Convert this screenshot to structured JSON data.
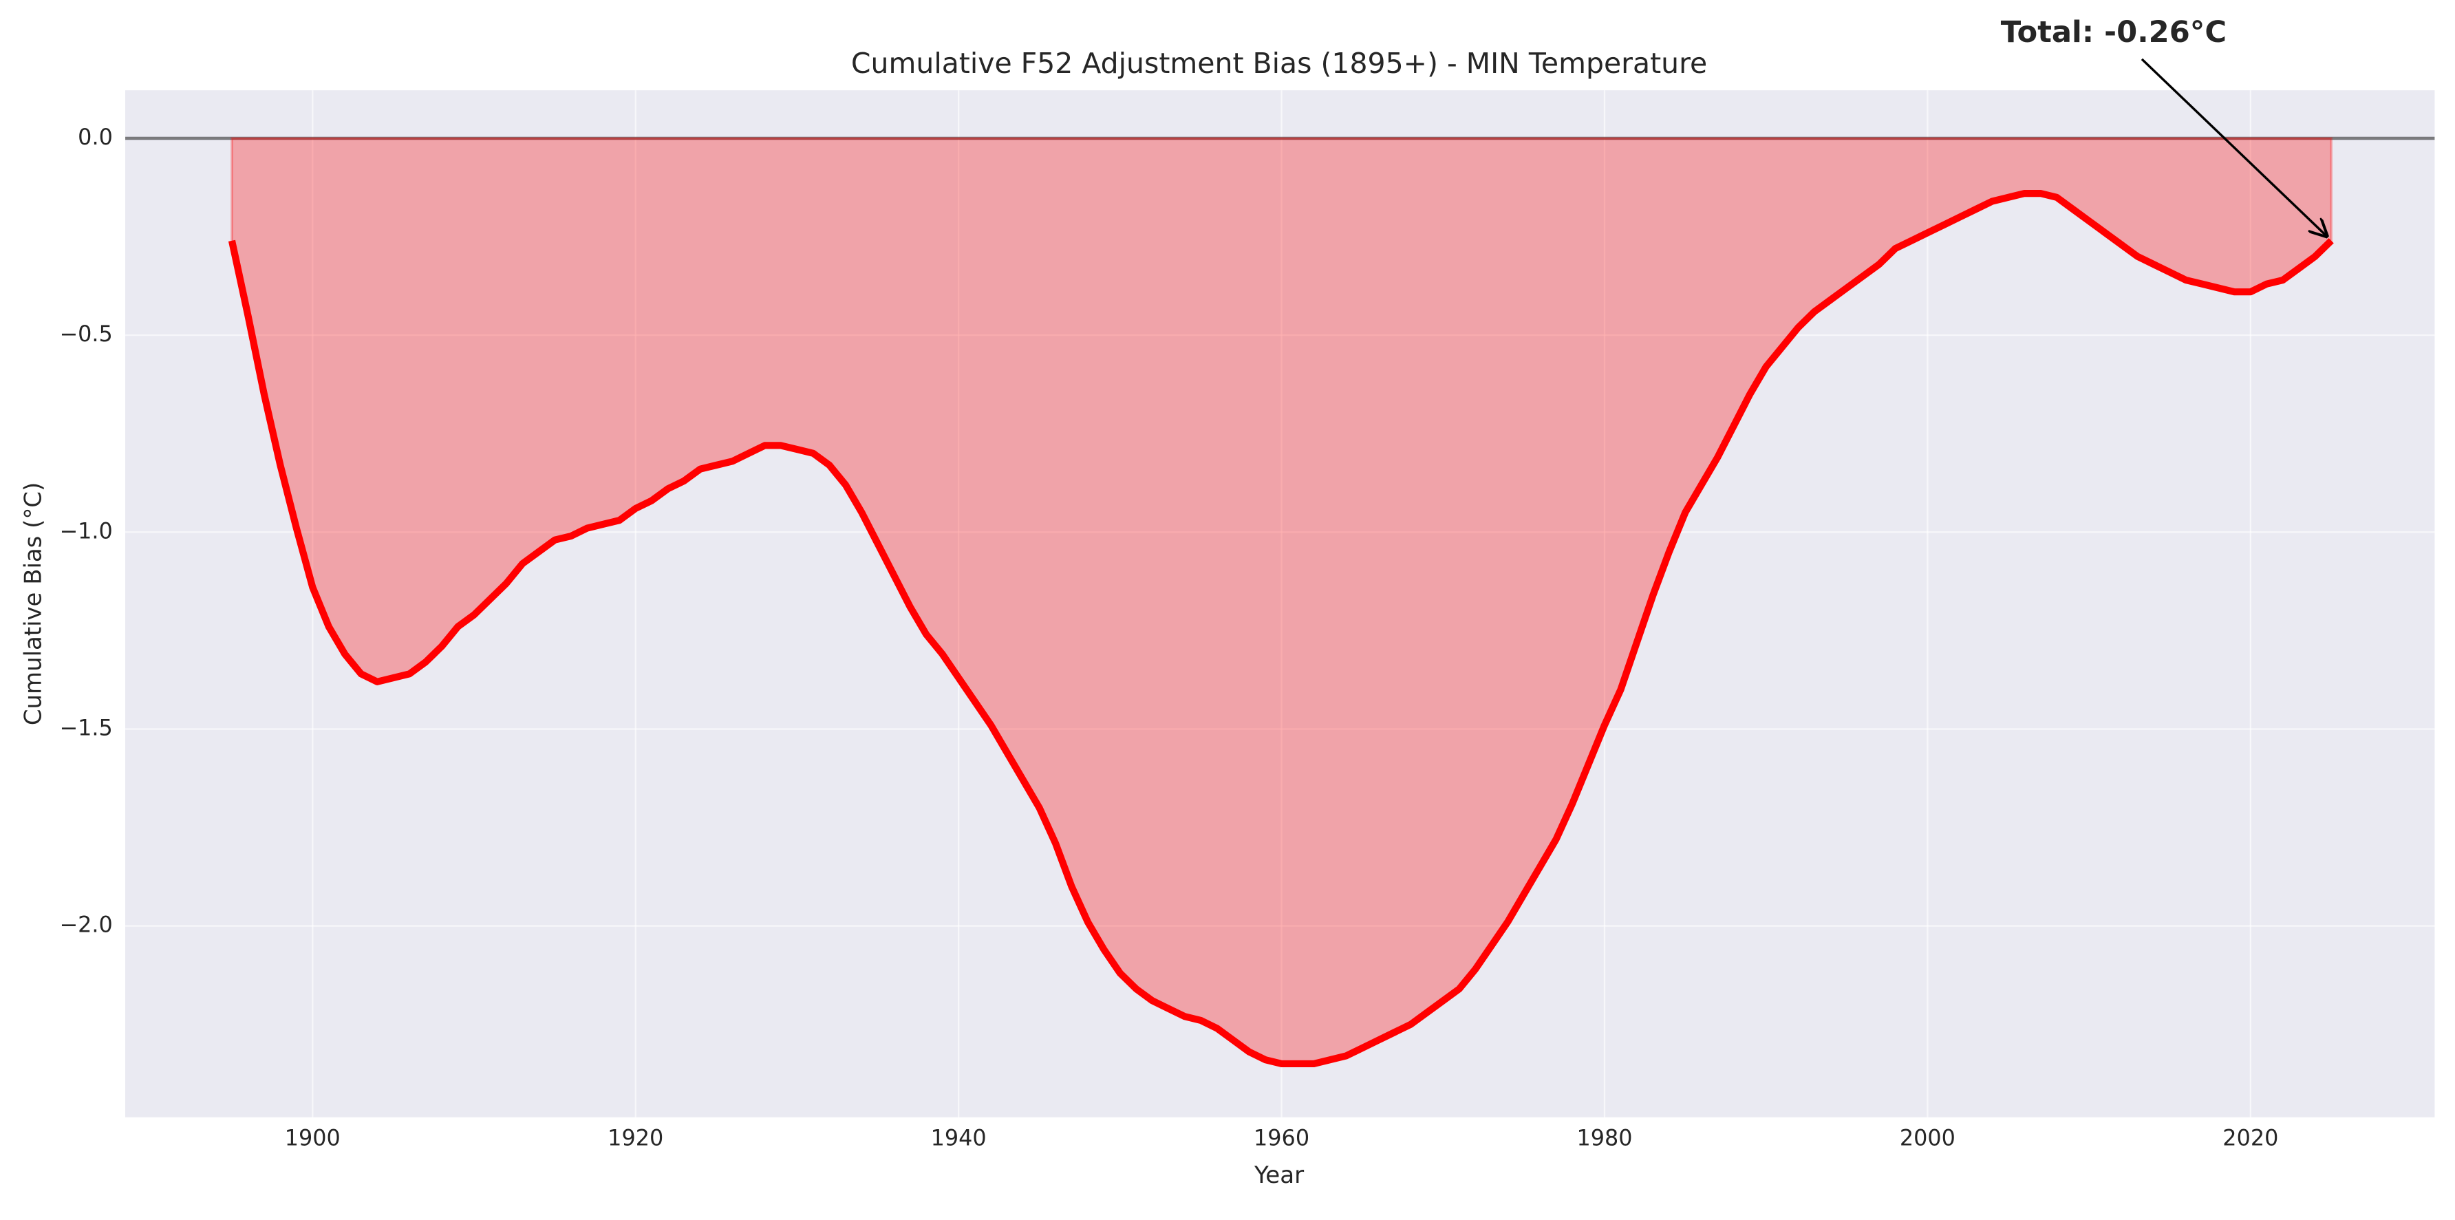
{
  "chart_data": {
    "type": "area",
    "title": "Cumulative F52 Adjustment Bias (1895+) - MIN Temperature",
    "xlabel": "Year",
    "ylabel": "Cumulative Bias (°C)",
    "annotation": "Total: -0.26°C",
    "x": [
      1895,
      1896,
      1897,
      1898,
      1899,
      1900,
      1901,
      1902,
      1903,
      1904,
      1905,
      1906,
      1907,
      1908,
      1909,
      1910,
      1911,
      1912,
      1913,
      1914,
      1915,
      1916,
      1917,
      1918,
      1919,
      1920,
      1921,
      1922,
      1923,
      1924,
      1925,
      1926,
      1927,
      1928,
      1929,
      1930,
      1931,
      1932,
      1933,
      1934,
      1935,
      1936,
      1937,
      1938,
      1939,
      1940,
      1941,
      1942,
      1943,
      1944,
      1945,
      1946,
      1947,
      1948,
      1949,
      1950,
      1951,
      1952,
      1953,
      1954,
      1955,
      1956,
      1957,
      1958,
      1959,
      1960,
      1961,
      1962,
      1963,
      1964,
      1965,
      1966,
      1967,
      1968,
      1969,
      1970,
      1971,
      1972,
      1973,
      1974,
      1975,
      1976,
      1977,
      1978,
      1979,
      1980,
      1981,
      1982,
      1983,
      1984,
      1985,
      1986,
      1987,
      1988,
      1989,
      1990,
      1991,
      1992,
      1993,
      1994,
      1995,
      1996,
      1997,
      1998,
      1999,
      2000,
      2001,
      2002,
      2003,
      2004,
      2005,
      2006,
      2007,
      2008,
      2009,
      2010,
      2011,
      2012,
      2013,
      2014,
      2015,
      2016,
      2017,
      2018,
      2019,
      2020,
      2021,
      2022,
      2023,
      2024,
      2025
    ],
    "series": [
      {
        "name": "Cumulative Bias",
        "color": "#ff0000",
        "fill_opacity": 0.3,
        "values": [
          -0.26,
          -0.45,
          -0.65,
          -0.83,
          -0.99,
          -1.14,
          -1.24,
          -1.31,
          -1.36,
          -1.38,
          -1.37,
          -1.36,
          -1.33,
          -1.29,
          -1.24,
          -1.21,
          -1.17,
          -1.13,
          -1.08,
          -1.05,
          -1.02,
          -1.01,
          -0.99,
          -0.98,
          -0.97,
          -0.94,
          -0.92,
          -0.89,
          -0.87,
          -0.84,
          -0.83,
          -0.82,
          -0.8,
          -0.78,
          -0.78,
          -0.79,
          -0.8,
          -0.83,
          -0.88,
          -0.95,
          -1.03,
          -1.11,
          -1.19,
          -1.26,
          -1.31,
          -1.37,
          -1.43,
          -1.49,
          -1.56,
          -1.63,
          -1.7,
          -1.79,
          -1.9,
          -1.99,
          -2.06,
          -2.12,
          -2.16,
          -2.19,
          -2.21,
          -2.23,
          -2.24,
          -2.26,
          -2.29,
          -2.32,
          -2.34,
          -2.35,
          -2.35,
          -2.35,
          -2.34,
          -2.33,
          -2.31,
          -2.29,
          -2.27,
          -2.25,
          -2.22,
          -2.19,
          -2.16,
          -2.11,
          -2.05,
          -1.99,
          -1.92,
          -1.85,
          -1.78,
          -1.69,
          -1.59,
          -1.49,
          -1.4,
          -1.28,
          -1.16,
          -1.05,
          -0.95,
          -0.88,
          -0.81,
          -0.73,
          -0.65,
          -0.58,
          -0.53,
          -0.48,
          -0.44,
          -0.41,
          -0.38,
          -0.35,
          -0.32,
          -0.28,
          -0.26,
          -0.24,
          -0.22,
          -0.2,
          -0.18,
          -0.16,
          -0.15,
          -0.14,
          -0.14,
          -0.15,
          -0.18,
          -0.21,
          -0.24,
          -0.27,
          -0.3,
          -0.32,
          -0.34,
          -0.36,
          -0.37,
          -0.38,
          -0.39,
          -0.39,
          -0.37,
          -0.36,
          -0.33,
          -0.3,
          -0.26
        ]
      }
    ],
    "hline": 0,
    "xlim": [
      1888.4,
      2031.4
    ],
    "xticks": [
      1900,
      1920,
      1940,
      1960,
      1980,
      2000,
      2020
    ],
    "ylim": [
      -2.486,
      0.122
    ],
    "yticks": [
      {
        "value": 0,
        "label": "0.0"
      },
      {
        "value": -0.5,
        "label": "−0.5"
      },
      {
        "value": -1.0,
        "label": "−1.0"
      },
      {
        "value": -1.5,
        "label": "−1.5"
      },
      {
        "value": -2.0,
        "label": "−2.0"
      }
    ],
    "grid": true
  }
}
